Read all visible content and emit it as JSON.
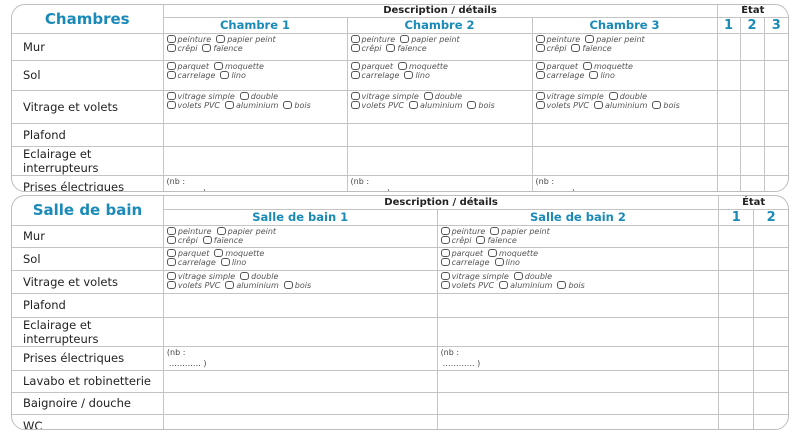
{
  "sections": [
    {
      "title": "Chambres",
      "description_header": "Description / détails",
      "etat_header": "État",
      "columns": [
        "Chambre 1",
        "Chambre 2",
        "Chambre 3"
      ],
      "etat_levels": [
        "1",
        "2",
        "3"
      ],
      "rows": [
        {
          "label": "Mur",
          "options": [
            [
              "peinture",
              "papier peint"
            ],
            [
              "crêpi",
              "faïence"
            ]
          ]
        },
        {
          "label": "Sol",
          "options": [
            [
              "parquet",
              "moquette"
            ],
            [
              "carrelage",
              "lino"
            ]
          ]
        },
        {
          "label": "Vitrage et volets",
          "options": [
            [
              "vitrage simple",
              "double"
            ],
            [
              "volets PVC",
              "aluminium",
              "bois"
            ]
          ]
        },
        {
          "label": "Plafond"
        },
        {
          "label": "Eclairage et interrupteurs"
        },
        {
          "label": "Prises électriques",
          "count": [
            "(nb :",
            "………… )"
          ]
        }
      ]
    },
    {
      "title": "Salle de bain",
      "description_header": "Description / détails",
      "etat_header": "État",
      "columns": [
        "Salle de bain 1",
        "Salle de bain 2"
      ],
      "etat_levels": [
        "1",
        "2"
      ],
      "rows": [
        {
          "label": "Mur",
          "options": [
            [
              "peinture",
              "papier peint"
            ],
            [
              "crêpi",
              "faïence"
            ]
          ]
        },
        {
          "label": "Sol",
          "options": [
            [
              "parquet",
              "moquette"
            ],
            [
              "carrelage",
              "lino"
            ]
          ]
        },
        {
          "label": "Vitrage et volets",
          "options": [
            [
              "vitrage simple",
              "double"
            ],
            [
              "volets PVC",
              "aluminium",
              "bois"
            ]
          ]
        },
        {
          "label": "Plafond"
        },
        {
          "label": "Eclairage et interrupteurs"
        },
        {
          "label": "Prises électriques",
          "count": [
            "(nb :",
            "………… )"
          ]
        },
        {
          "label": "Lavabo et robinetterie"
        },
        {
          "label": "Baignoire / douche"
        },
        {
          "label": "WC"
        }
      ]
    }
  ],
  "colors": {
    "accent": "#1a8ab8",
    "border": "#c4c4c4"
  }
}
